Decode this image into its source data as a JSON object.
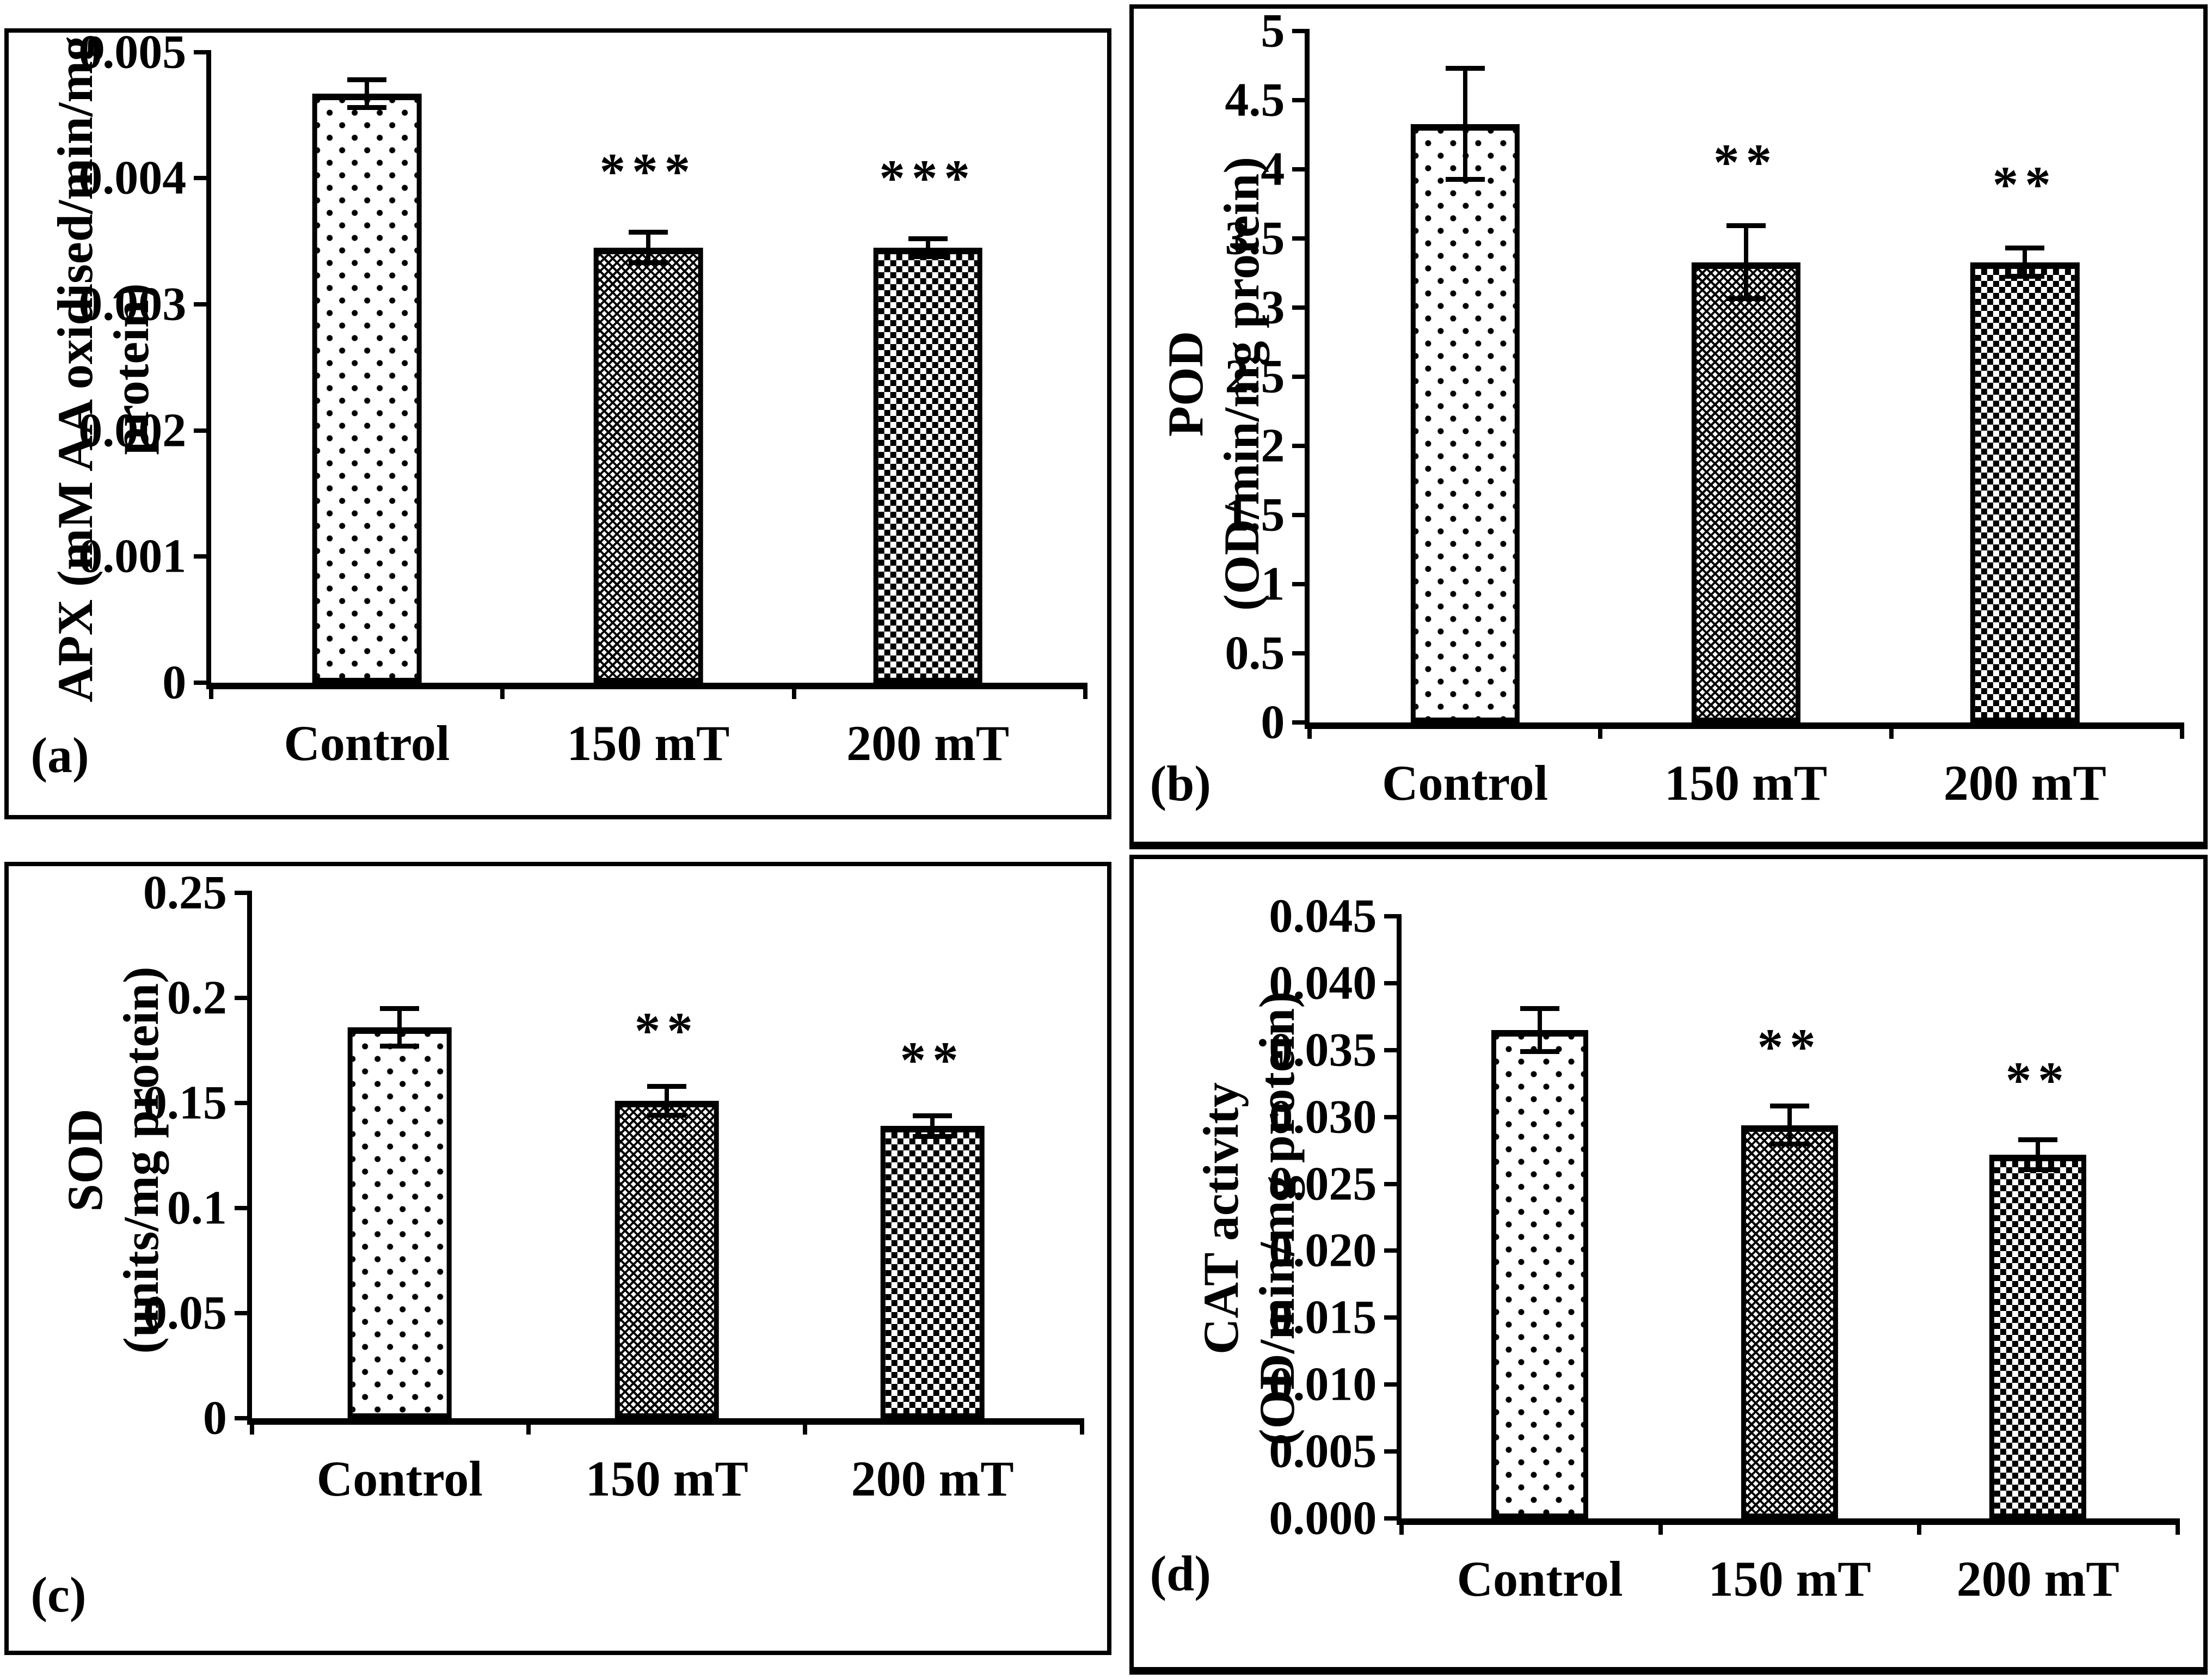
{
  "figure": {
    "background_color": "#ffffff",
    "ink_color": "#000000",
    "grid": "off",
    "legend": "none"
  },
  "chart_data": [
    {
      "type": "bar",
      "panel_label": "(a)",
      "ylabel_line1": "APX (mM AA oxidised/min/mg",
      "ylabel_line2": "protein)",
      "categories": [
        "Control",
        "150 mT",
        "200 mT"
      ],
      "values": [
        0.00467,
        0.00345,
        0.00345
      ],
      "errors": [
        0.00013,
        0.00014,
        9e-05
      ],
      "significance": [
        "",
        "***",
        "***"
      ],
      "ylim": [
        0,
        0.005
      ],
      "yticks": [
        "0.005",
        "0.004",
        "0.003",
        "0.002",
        "0.001",
        "0"
      ],
      "bar_patterns": [
        "dots",
        "zigzag",
        "checker"
      ]
    },
    {
      "type": "bar",
      "panel_label": "(b)",
      "ylabel_line1": "POD",
      "ylabel_line2": "(OD/min/mg protein)",
      "categories": [
        "Control",
        "150 mT",
        "200 mT"
      ],
      "values": [
        4.33,
        3.33,
        3.33
      ],
      "errors": [
        0.42,
        0.28,
        0.12
      ],
      "significance": [
        "",
        "**",
        "**"
      ],
      "ylim": [
        0,
        5
      ],
      "yticks": [
        "5",
        "4.5",
        "4",
        "3.5",
        "3",
        "2.5",
        "2",
        "1.5",
        "1",
        "0.5",
        "0"
      ],
      "bar_patterns": [
        "dots",
        "zigzag",
        "checker"
      ]
    },
    {
      "type": "bar",
      "panel_label": "(c)",
      "ylabel_line1": "SOD",
      "ylabel_line2": "(units/mg protein)",
      "categories": [
        "Control",
        "150 mT",
        "200 mT"
      ],
      "values": [
        0.186,
        0.151,
        0.139
      ],
      "errors": [
        0.01,
        0.008,
        0.006
      ],
      "significance": [
        "",
        "**",
        "**"
      ],
      "ylim": [
        0,
        0.25
      ],
      "yticks": [
        "0.25",
        "0.2",
        "0.15",
        "0.1",
        "0.05",
        "0"
      ],
      "bar_patterns": [
        "dots",
        "zigzag",
        "checker"
      ]
    },
    {
      "type": "bar",
      "panel_label": "(d)",
      "ylabel_line1": "CAT activity",
      "ylabel_line2": "(OD/min/mg protein)",
      "categories": [
        "Control",
        "150 mT",
        "200 mT"
      ],
      "values": [
        0.0365,
        0.0294,
        0.0272
      ],
      "errors": [
        0.0018,
        0.0016,
        0.0013
      ],
      "significance": [
        "",
        "**",
        "**"
      ],
      "ylim": [
        0,
        0.045
      ],
      "yticks": [
        "0.045",
        "0.040",
        "0.035",
        "0.030",
        "0.025",
        "0.020",
        "0.015",
        "0.010",
        "0.005",
        "0.000"
      ],
      "bar_patterns": [
        "dots",
        "zigzag",
        "checker"
      ]
    }
  ]
}
